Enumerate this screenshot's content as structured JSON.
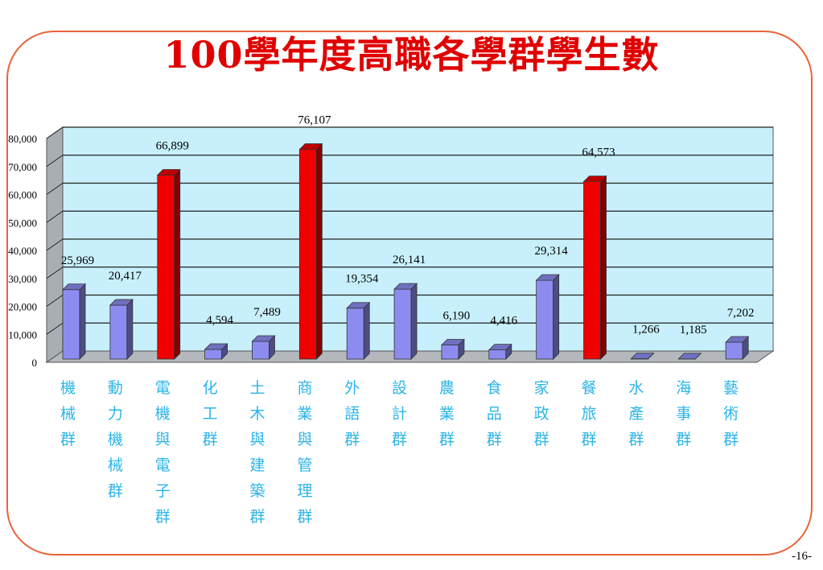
{
  "title": "100學年度高職各學群學生數",
  "page_number": "-16-",
  "colors": {
    "title": "#e00000",
    "frame": "#e8643a",
    "plot_bg": "#c8f0fc",
    "bar_blue": "#8c8cf0",
    "bar_red": "#ee0000",
    "category_text": "#2cb4e8"
  },
  "chart_data": {
    "type": "bar",
    "title": "",
    "xlabel": "",
    "ylabel": "",
    "ylim": [
      0,
      80000
    ],
    "yticks": [
      "0",
      "10,000",
      "20,000",
      "30,000",
      "40,000",
      "50,000",
      "60,000",
      "70,000",
      "80,000"
    ],
    "grid": true,
    "style": "3d",
    "categories": [
      "機械群",
      "動力機械群",
      "電機與電子群",
      "化工群",
      "土木與建築群",
      "商業與管理群",
      "外語群",
      "設計群",
      "農業群",
      "食品群",
      "家政群",
      "餐旅群",
      "水產群",
      "海事群",
      "藝術群"
    ],
    "values": [
      25969,
      20417,
      66899,
      4594,
      7489,
      76107,
      19354,
      26141,
      6190,
      4416,
      29314,
      64573,
      1266,
      1185,
      7202
    ],
    "value_labels": [
      "25,969",
      "20,417",
      "66,899",
      "4,594",
      "7,489",
      "76,107",
      "19,354",
      "26,141",
      "6,190",
      "4,416",
      "29,314",
      "64,573",
      "1,266",
      "1,185",
      "7,202"
    ],
    "highlighted": [
      false,
      false,
      true,
      false,
      false,
      true,
      false,
      false,
      false,
      false,
      false,
      true,
      false,
      false,
      false
    ]
  }
}
